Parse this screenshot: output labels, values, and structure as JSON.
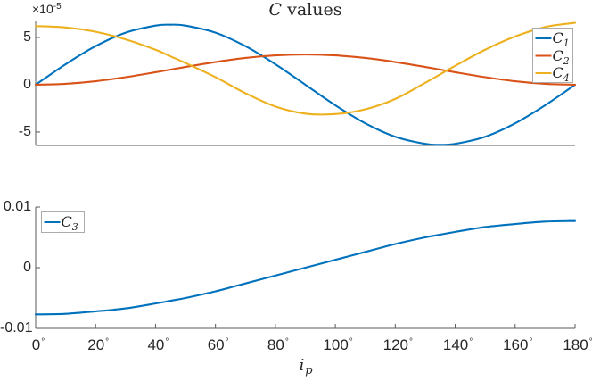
{
  "figure": {
    "background": "#ffffff"
  },
  "text": {
    "title_math": "C",
    "title_rest": " values",
    "exp_base": "×10",
    "exp_sup": "-5",
    "xlabel_base": "i",
    "xlabel_sub": "p",
    "degree_symbol": "°"
  },
  "colors": {
    "blue": "#0072BD",
    "orange": "#D95319",
    "yellow": "#EDB120",
    "axis": "#595959",
    "text": "#262626",
    "legend_border": "#ababab",
    "legend_bg": "#ffffff"
  },
  "chart_data": [
    {
      "type": "line",
      "title": "C values",
      "xlabel": "i_p",
      "x_unit": "degrees",
      "xlim": [
        0,
        180
      ],
      "ylim": [
        -6.42e-05,
        6.79e-05
      ],
      "y_scale": "×10^-5",
      "grid": false,
      "legend_position": "top-right",
      "x": [
        0,
        10,
        20,
        30,
        40,
        45,
        50,
        60,
        70,
        80,
        90,
        100,
        110,
        120,
        130,
        135,
        140,
        150,
        160,
        170,
        180
      ],
      "series": [
        {
          "name": "C1",
          "legend_base": "C",
          "legend_sub": "1",
          "color": "#0072BD",
          "values_e5": [
            0,
            2.17,
            4.08,
            5.5,
            6.25,
            6.35,
            6.25,
            5.5,
            4.08,
            2.17,
            0,
            -2.17,
            -4.08,
            -5.5,
            -6.25,
            -6.35,
            -6.25,
            -5.5,
            -4.08,
            -2.17,
            0
          ]
        },
        {
          "name": "C2",
          "legend_base": "C",
          "legend_sub": "2",
          "color": "#D95319",
          "values_e5": [
            0,
            0.1,
            0.37,
            0.8,
            1.32,
            1.6,
            1.88,
            2.4,
            2.83,
            3.1,
            3.2,
            3.1,
            2.83,
            2.4,
            1.88,
            1.6,
            1.32,
            0.8,
            0.37,
            0.1,
            0
          ]
        },
        {
          "name": "C4",
          "legend_base": "C",
          "legend_sub": "4",
          "color": "#EDB120",
          "values_e5": [
            6.2,
            6.05,
            5.6,
            4.8,
            3.7,
            3.0,
            2.3,
            0.8,
            -0.9,
            -2.3,
            -3.05,
            -3.1,
            -2.6,
            -1.5,
            0.2,
            1.1,
            2.0,
            3.7,
            5.1,
            6.1,
            6.55
          ]
        }
      ],
      "y_ticks": [
        {
          "label": "5",
          "v": 5
        },
        {
          "label": "0",
          "v": 0
        },
        {
          "label": "-5",
          "v": -5
        }
      ]
    },
    {
      "type": "line",
      "title": "",
      "xlabel": "i_p",
      "x_unit": "degrees",
      "xlim": [
        0,
        180
      ],
      "ylim": [
        -0.01,
        0.01
      ],
      "grid": false,
      "legend_position": "top-left",
      "x": [
        0,
        10,
        20,
        30,
        40,
        45,
        50,
        60,
        70,
        80,
        90,
        100,
        110,
        120,
        130,
        135,
        140,
        150,
        160,
        170,
        180
      ],
      "series": [
        {
          "name": "C3",
          "legend_base": "C",
          "legend_sub": "3",
          "color": "#0072BD",
          "values": [
            -0.0077,
            -0.0076,
            -0.0072,
            -0.0067,
            -0.0059,
            -0.00545,
            -0.005,
            -0.0039,
            -0.0026,
            -0.0013,
            0,
            0.0013,
            0.0026,
            0.0039,
            0.005,
            0.00545,
            0.0059,
            0.0067,
            0.0072,
            0.0076,
            0.0077
          ]
        }
      ],
      "y_ticks": [
        {
          "label": "0.01",
          "v": 0.01
        },
        {
          "label": "0",
          "v": 0
        },
        {
          "label": "-0.01",
          "v": -0.01
        }
      ],
      "x_ticks": [
        "0",
        "20",
        "40",
        "60",
        "80",
        "100",
        "120",
        "140",
        "160",
        "180"
      ]
    }
  ]
}
